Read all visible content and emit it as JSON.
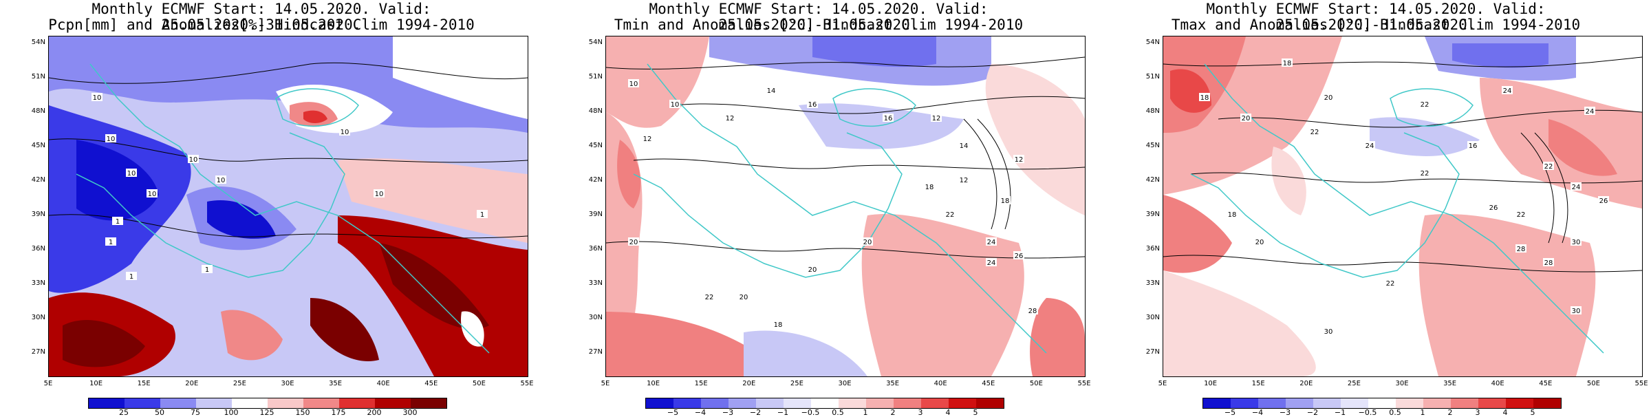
{
  "panels": [
    {
      "title_line1": "Monthly ECMWF Start: 14.05.2020. Valid: 25.05.2020.-31.05.2020.",
      "title_line2": "Pcpn[mm] and Anomalies[%] Hindcast Clim 1994-2010",
      "colorbar_labels": [
        "25",
        "50",
        "75",
        "100",
        "125",
        "150",
        "175",
        "200",
        "300"
      ],
      "colorbar_colors": [
        "#1010d0",
        "#3a3ae8",
        "#8a8af2",
        "#c8c8f6",
        "#ffffff",
        "#f8c8c8",
        "#f08888",
        "#e03030",
        "#b00000",
        "#7a0000"
      ],
      "contour_labels": [
        "10",
        "10",
        "10",
        "10",
        "10",
        "10",
        "1",
        "1",
        "1",
        "1",
        "10",
        "10",
        "1"
      ]
    },
    {
      "title_line1": "Monthly ECMWF Start: 14.05.2020. Valid: 25.05.2020.-31.05.2020.",
      "title_line2": "Tmin and Anomalies [°C] Hindcast Clim 1994-2010",
      "colorbar_labels": [
        "−5",
        "−4",
        "−3",
        "−2",
        "−1",
        "−0.5",
        "0.5",
        "1",
        "2",
        "3",
        "4",
        "5"
      ],
      "colorbar_colors": [
        "#1010d0",
        "#3a3ae8",
        "#7070ee",
        "#a0a0f2",
        "#c8c8f6",
        "#e4e4fa",
        "#ffffff",
        "#fadada",
        "#f6b0b0",
        "#f08080",
        "#e84848",
        "#d01010",
        "#b00000"
      ],
      "contour_labels": [
        "10",
        "12",
        "10",
        "12",
        "14",
        "16",
        "16",
        "12",
        "14",
        "18",
        "20",
        "20",
        "18",
        "22",
        "20",
        "20",
        "22",
        "24",
        "26",
        "28",
        "24",
        "12",
        "18",
        "12"
      ]
    },
    {
      "title_line1": "Monthly ECMWF Start: 14.05.2020. Valid: 25.05.2020.-31.05.2020.",
      "title_line2": "Tmax and Anomalies [°C] Hindcast Clim 1994-2010",
      "colorbar_labels": [
        "−5",
        "−4",
        "−3",
        "−2",
        "−1",
        "−0.5",
        "0.5",
        "1",
        "2",
        "3",
        "4",
        "5"
      ],
      "colorbar_colors": [
        "#1010d0",
        "#3a3ae8",
        "#7070ee",
        "#a0a0f2",
        "#c8c8f6",
        "#e4e4fa",
        "#ffffff",
        "#fadada",
        "#f6b0b0",
        "#f08080",
        "#e84848",
        "#d01010",
        "#b00000"
      ],
      "contour_labels": [
        "18",
        "20",
        "22",
        "24",
        "18",
        "20",
        "22",
        "24",
        "16",
        "22",
        "24",
        "26",
        "22",
        "28",
        "30",
        "22",
        "30",
        "30",
        "28",
        "26",
        "22",
        "24",
        "18",
        "20"
      ]
    }
  ],
  "lat_labels": [
    "54N",
    "51N",
    "48N",
    "45N",
    "42N",
    "39N",
    "36N",
    "33N",
    "30N",
    "27N"
  ],
  "lon_labels": [
    "5E",
    "10E",
    "15E",
    "20E",
    "25E",
    "30E",
    "35E",
    "40E",
    "45E",
    "50E",
    "55E"
  ]
}
